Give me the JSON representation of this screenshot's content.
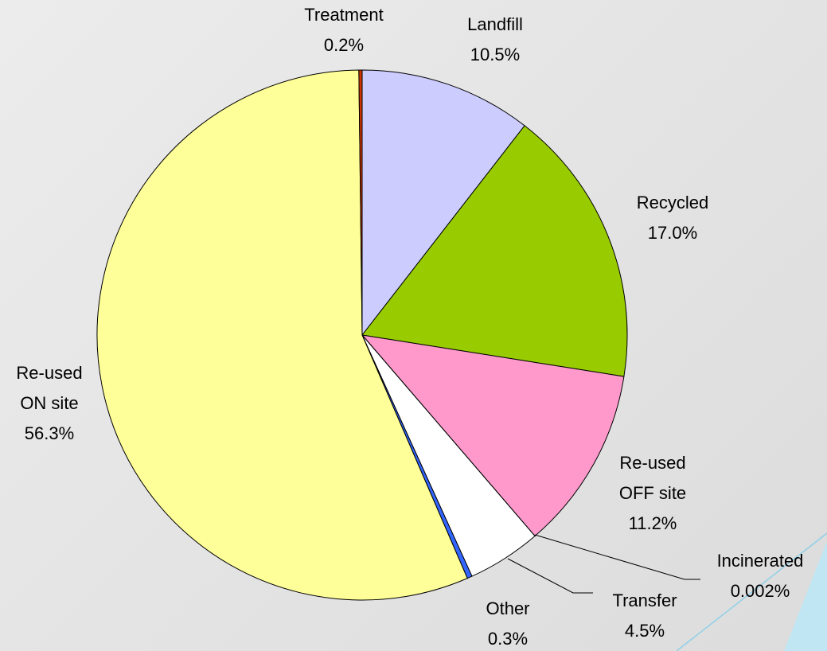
{
  "chart_data": {
    "type": "pie",
    "categories": [
      "Landfill",
      "Recycled",
      "Re-used OFF site",
      "Incinerated",
      "Transfer",
      "Other",
      "Re-used ON site",
      "Treatment"
    ],
    "values": [
      10.5,
      17.0,
      11.2,
      0.002,
      4.5,
      0.3,
      56.3,
      0.2
    ],
    "value_labels": [
      "10.5%",
      "17.0%",
      "11.2%",
      "0.002%",
      "4.5%",
      "0.3%",
      "56.3%",
      "0.2%"
    ],
    "colors": [
      "#ccccff",
      "#99cc00",
      "#ff99cc",
      "#993366",
      "#ffffff",
      "#3366ff",
      "#ffff99",
      "#cc3300"
    ]
  }
}
